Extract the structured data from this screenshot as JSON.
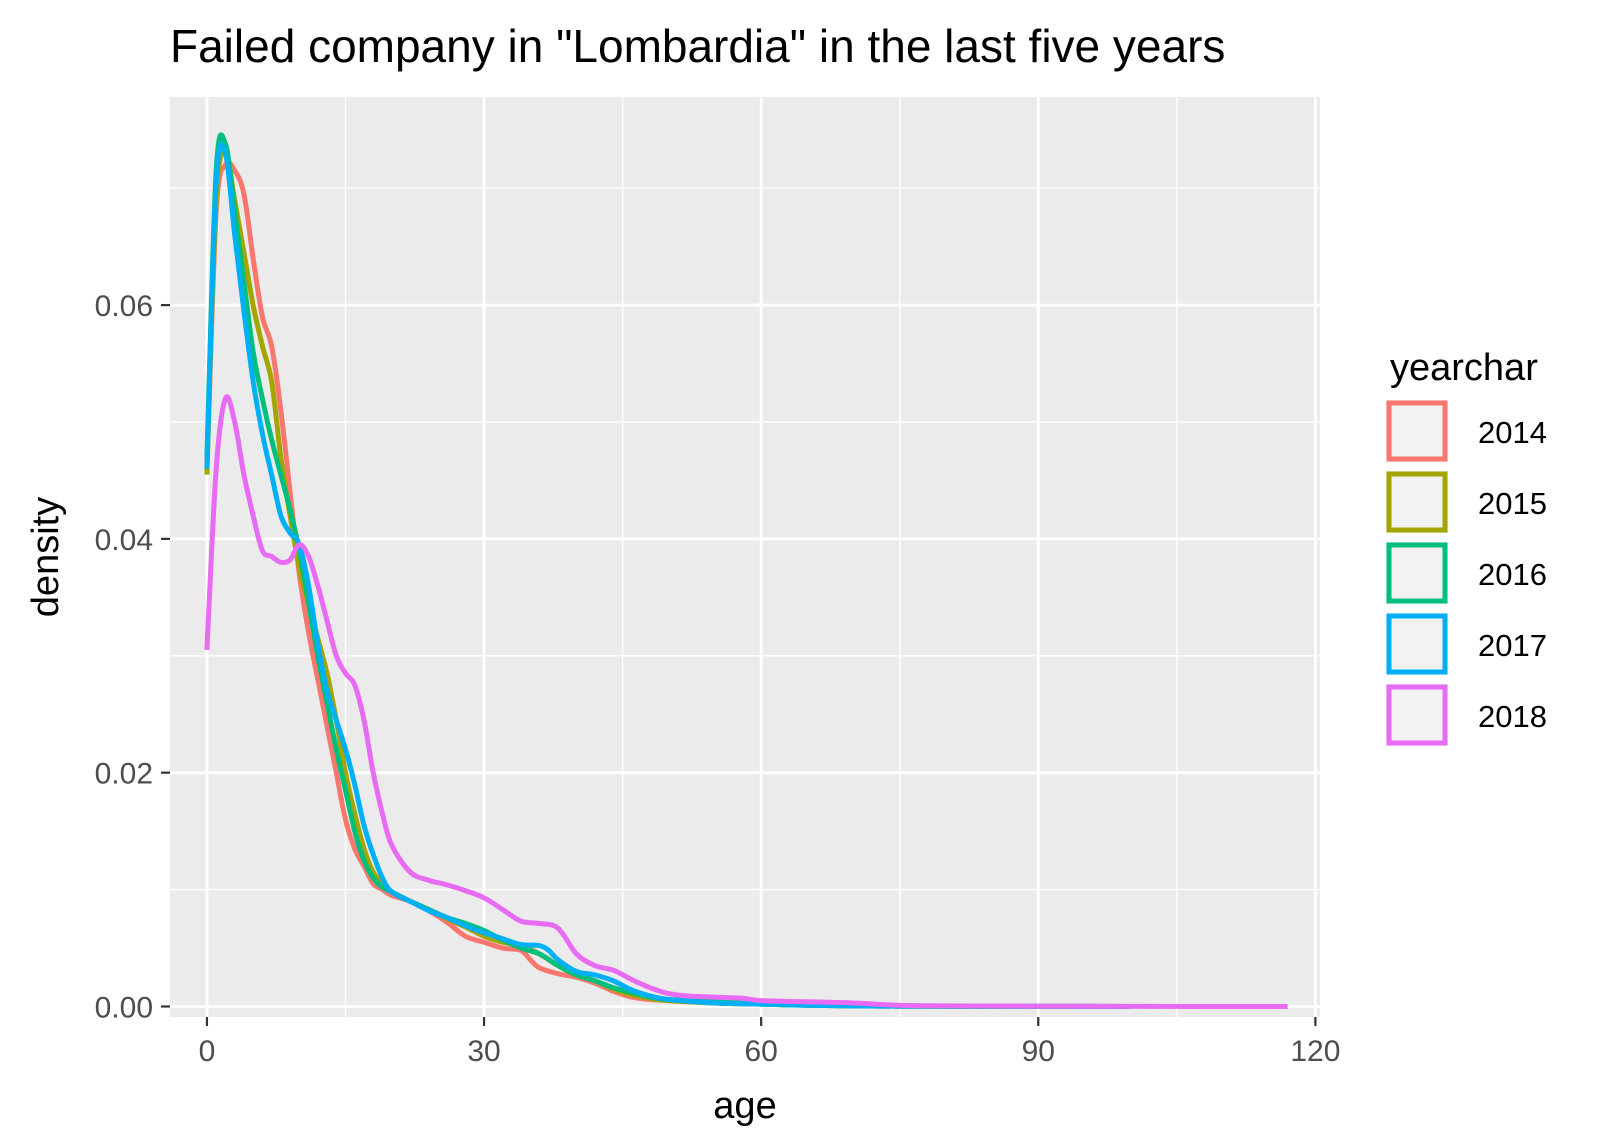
{
  "chart_data": {
    "type": "line",
    "title": "Failed company in \"Lombardia\" in the last five years",
    "xlabel": "age",
    "ylabel": "density",
    "xlim": [
      -4,
      120.5
    ],
    "ylim": [
      -0.0009,
      0.0778
    ],
    "x_ticks": [
      0,
      30,
      60,
      90,
      120
    ],
    "x_tick_labels": [
      "0",
      "30",
      "60",
      "90",
      "120"
    ],
    "x_minor": [
      15,
      45,
      75,
      105
    ],
    "y_ticks": [
      0,
      0.02,
      0.04,
      0.06
    ],
    "y_tick_labels": [
      "0.00",
      "0.02",
      "0.04",
      "0.06"
    ],
    "y_minor": [
      0.01,
      0.03,
      0.05,
      0.07
    ],
    "grid": true,
    "legend": {
      "title": "yearchar",
      "position": "right"
    },
    "series": [
      {
        "name": "2014",
        "color": "#F8766D",
        "x": [
          0,
          1,
          2,
          3,
          4,
          5,
          6,
          7,
          8,
          9,
          10,
          11,
          12,
          13,
          14,
          15,
          16,
          17,
          18,
          19,
          20,
          22,
          24,
          26,
          28,
          30,
          32,
          34,
          35,
          36,
          38,
          40,
          42,
          44,
          46,
          48,
          50,
          55,
          60,
          65,
          70,
          75,
          80,
          90,
          100
        ],
        "y": [
          0.046,
          0.068,
          0.072,
          0.0715,
          0.0695,
          0.064,
          0.059,
          0.0565,
          0.051,
          0.044,
          0.037,
          0.032,
          0.028,
          0.024,
          0.02,
          0.016,
          0.0135,
          0.012,
          0.0105,
          0.01,
          0.0095,
          0.009,
          0.0082,
          0.0072,
          0.006,
          0.0055,
          0.005,
          0.0048,
          0.004,
          0.0033,
          0.0028,
          0.0025,
          0.002,
          0.0013,
          0.0008,
          0.0006,
          0.0005,
          0.0003,
          0.0002,
          0.0001,
          5e-05,
          3e-05,
          2e-05,
          1e-05,
          0
        ]
      },
      {
        "name": "2015",
        "color": "#A3A500",
        "x": [
          0,
          1,
          2,
          3,
          4,
          5,
          6,
          7,
          8,
          9,
          10,
          11,
          12,
          13,
          14,
          15,
          16,
          17,
          18,
          19,
          20,
          22,
          24,
          26,
          28,
          30,
          32,
          34,
          36,
          38,
          40,
          42,
          44,
          46,
          48,
          50,
          55,
          60,
          65,
          70,
          75,
          80,
          90,
          100
        ],
        "y": [
          0.0455,
          0.069,
          0.073,
          0.069,
          0.0645,
          0.06,
          0.0565,
          0.0535,
          0.047,
          0.042,
          0.0375,
          0.0345,
          0.0315,
          0.0285,
          0.0245,
          0.02,
          0.0165,
          0.0135,
          0.0115,
          0.0105,
          0.0098,
          0.009,
          0.0083,
          0.0075,
          0.0068,
          0.006,
          0.0055,
          0.0052,
          0.0045,
          0.0035,
          0.0027,
          0.0022,
          0.0015,
          0.001,
          0.0007,
          0.0005,
          0.0003,
          0.0002,
          0.0001,
          5e-05,
          3e-05,
          2e-05,
          1e-05,
          0
        ]
      },
      {
        "name": "2016",
        "color": "#00BF7D",
        "x": [
          0,
          1,
          2,
          3,
          4,
          5,
          6,
          7,
          8,
          9,
          10,
          11,
          12,
          13,
          14,
          15,
          16,
          17,
          18,
          19,
          20,
          22,
          24,
          26,
          28,
          30,
          32,
          34,
          36,
          38,
          40,
          42,
          44,
          46,
          48,
          50,
          55,
          60,
          65,
          70,
          75,
          80,
          90,
          100
        ],
        "y": [
          0.047,
          0.0715,
          0.0738,
          0.068,
          0.062,
          0.056,
          0.052,
          0.0485,
          0.0455,
          0.0425,
          0.039,
          0.0345,
          0.03,
          0.026,
          0.022,
          0.0185,
          0.015,
          0.0125,
          0.011,
          0.0102,
          0.0098,
          0.009,
          0.0083,
          0.0076,
          0.0071,
          0.0065,
          0.0057,
          0.005,
          0.0045,
          0.0035,
          0.0027,
          0.0022,
          0.0016,
          0.0012,
          0.0008,
          0.0006,
          0.0004,
          0.0002,
          0.0001,
          5e-05,
          3e-05,
          2e-05,
          1e-05,
          0
        ]
      },
      {
        "name": "2017",
        "color": "#00B0F6",
        "x": [
          0,
          1,
          2,
          3,
          4,
          5,
          6,
          7,
          8,
          9,
          10,
          11,
          12,
          13,
          14,
          15,
          16,
          17,
          18,
          19,
          20,
          22,
          24,
          26,
          28,
          30,
          32,
          34,
          36,
          37,
          38,
          40,
          42,
          44,
          46,
          48,
          50,
          55,
          60,
          65,
          70,
          75,
          80,
          90,
          100
        ],
        "y": [
          0.046,
          0.0705,
          0.073,
          0.066,
          0.0595,
          0.0535,
          0.049,
          0.0455,
          0.042,
          0.0405,
          0.0395,
          0.036,
          0.031,
          0.027,
          0.0245,
          0.022,
          0.019,
          0.0155,
          0.013,
          0.011,
          0.0098,
          0.009,
          0.0082,
          0.0076,
          0.0069,
          0.0063,
          0.0058,
          0.0053,
          0.0052,
          0.0048,
          0.004,
          0.003,
          0.0027,
          0.0022,
          0.0014,
          0.0009,
          0.0006,
          0.0003,
          0.0002,
          0.0001,
          5e-05,
          3e-05,
          2e-05,
          1e-05,
          0
        ]
      },
      {
        "name": "2018",
        "color": "#E76BF3",
        "x": [
          0,
          1,
          2,
          3,
          4,
          5,
          6,
          7,
          8,
          9,
          10,
          11,
          12,
          13,
          14,
          15,
          16,
          17,
          18,
          19,
          20,
          22,
          24,
          26,
          28,
          30,
          32,
          34,
          36,
          38,
          40,
          42,
          44,
          46,
          48,
          50,
          52,
          55,
          58,
          60,
          65,
          70,
          75,
          80,
          90,
          100,
          117
        ],
        "y": [
          0.0305,
          0.046,
          0.052,
          0.05,
          0.0455,
          0.042,
          0.039,
          0.0385,
          0.038,
          0.0382,
          0.0395,
          0.0385,
          0.036,
          0.033,
          0.03,
          0.0285,
          0.0275,
          0.0245,
          0.02,
          0.0165,
          0.0138,
          0.0115,
          0.0108,
          0.0104,
          0.0099,
          0.0093,
          0.0083,
          0.0073,
          0.0071,
          0.0067,
          0.0045,
          0.0035,
          0.0031,
          0.0023,
          0.0016,
          0.0011,
          0.0009,
          0.0008,
          0.0007,
          0.0005,
          0.0004,
          0.0003,
          0.0001,
          5e-05,
          2e-05,
          1e-05,
          0
        ]
      }
    ]
  },
  "colors": {
    "panel_background": "#EBEBEB",
    "grid": "#FFFFFF",
    "tick_text": "#4D4D4D",
    "tick_mark": "#333333"
  }
}
